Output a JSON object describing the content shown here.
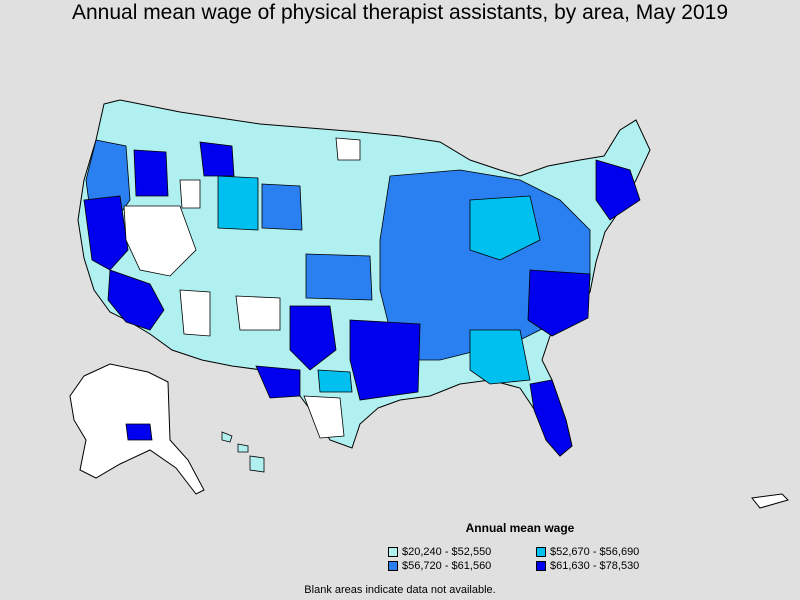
{
  "title": "Annual mean wage of physical therapist assistants, by area, May 2019",
  "legend": {
    "title": "Annual mean wage",
    "items": [
      {
        "label": "$20,240 - $52,550",
        "color": "#b0f0f0"
      },
      {
        "label": "$52,670 - $56,690",
        "color": "#00c0f0"
      },
      {
        "label": "$56,720 - $61,560",
        "color": "#2a80f0"
      },
      {
        "label": "$61,630 - $78,530",
        "color": "#0000ee"
      }
    ]
  },
  "note": "Blank areas indicate data not available.",
  "colors": {
    "background": "#e0e0e0",
    "no_data": "#ffffff",
    "border": "#000000"
  }
}
